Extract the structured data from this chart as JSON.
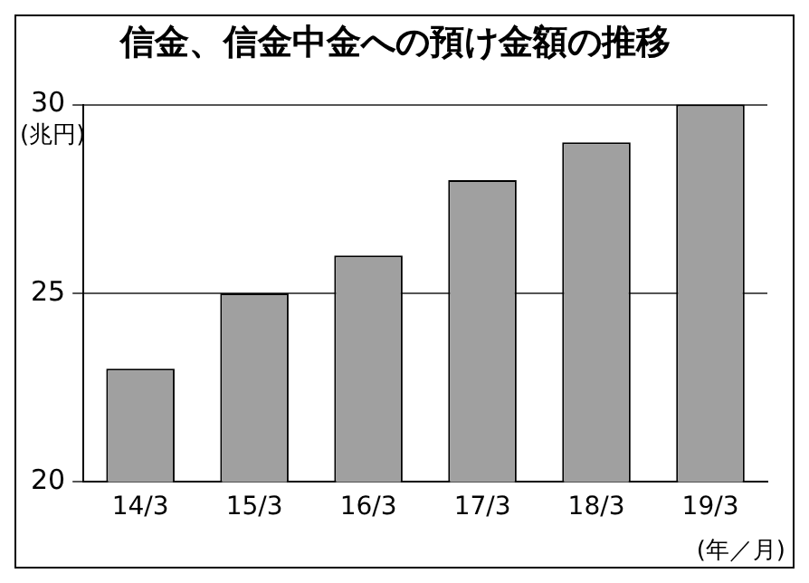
{
  "chart_data": {
    "type": "bar",
    "title": "信金、信金中金への預け金額の推移",
    "ylabel": "(兆円)",
    "xlabel": "(年／月)",
    "categories": [
      "14/3",
      "15/3",
      "16/3",
      "17/3",
      "18/3",
      "19/3"
    ],
    "values": [
      23,
      25,
      26,
      28,
      29,
      30
    ],
    "color": "#a0a0a0",
    "ylim": [
      20,
      30
    ],
    "yticks": [
      20,
      25,
      30
    ],
    "grid": "y"
  }
}
